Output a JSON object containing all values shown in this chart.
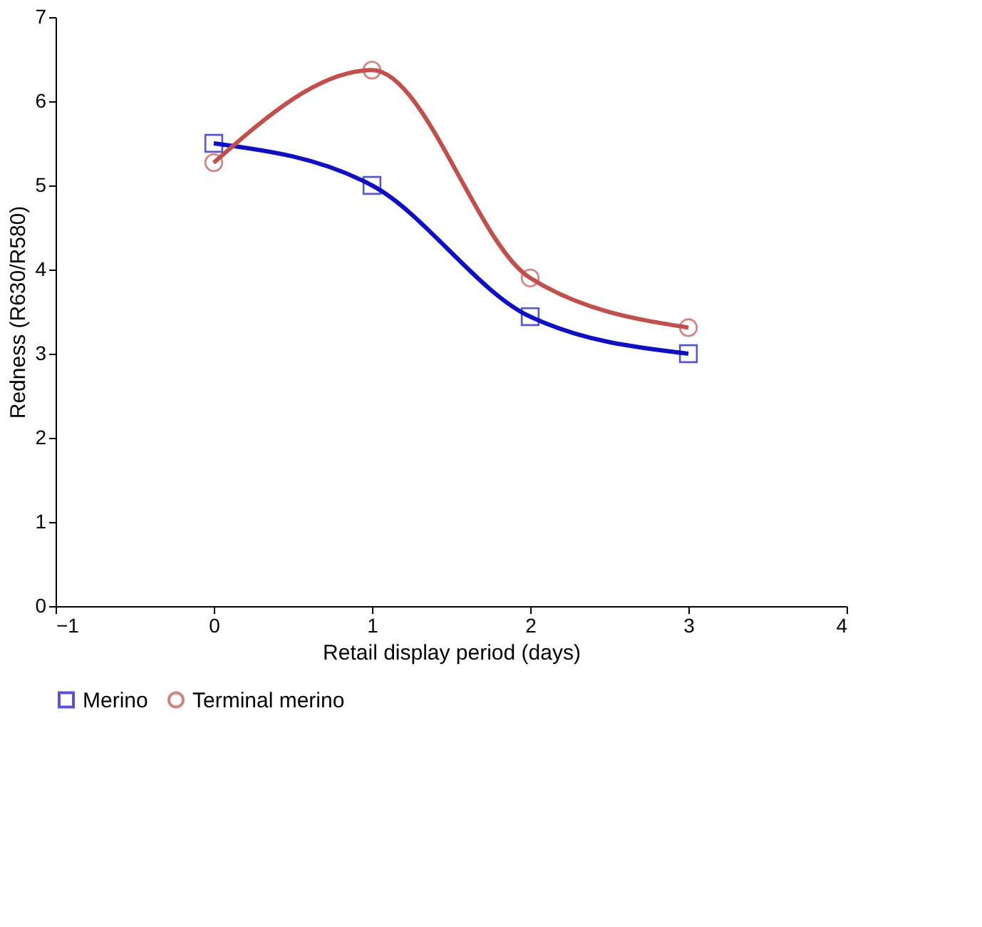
{
  "chart_data": {
    "type": "line",
    "xlabel": "Retail display period (days)",
    "ylabel": "Redness (R630/R580)",
    "x": [
      0,
      1,
      2,
      3
    ],
    "series": [
      {
        "name": "Merino",
        "color": "#1010c0",
        "marker": "square",
        "values": [
          5.5,
          5.0,
          3.44,
          3.0
        ]
      },
      {
        "name": "Terminal merino",
        "color": "#c0504d",
        "marker": "circle",
        "values": [
          5.27,
          6.37,
          3.9,
          3.31
        ]
      }
    ],
    "xlim": [
      -1,
      4
    ],
    "xticks": [
      -1,
      0,
      1,
      2,
      3,
      4
    ],
    "ylim": [
      0,
      7
    ],
    "yticks": [
      0,
      1,
      2,
      3,
      4,
      5,
      6,
      7
    ],
    "grid": false,
    "legend": "bottom"
  }
}
